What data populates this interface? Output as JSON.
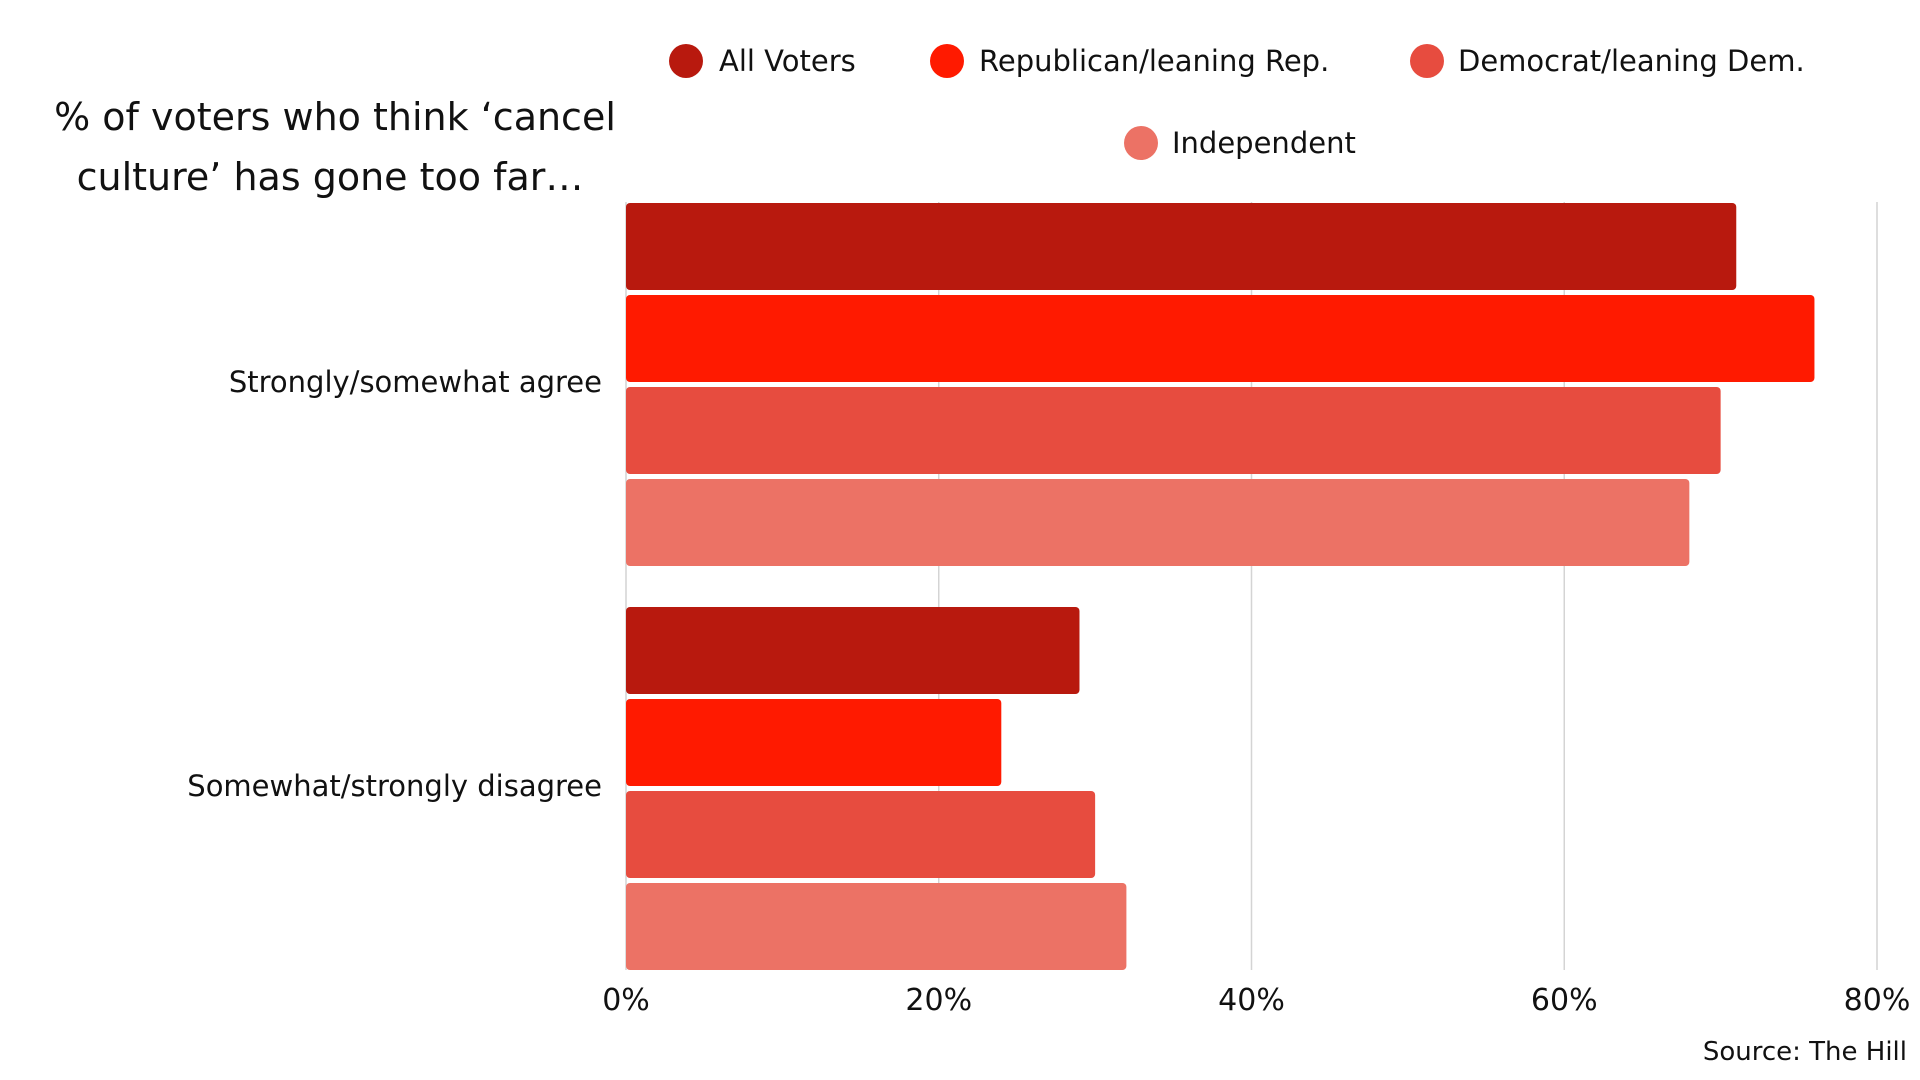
{
  "chart_data": {
    "type": "bar",
    "orientation": "horizontal",
    "title": "% of voters who think ‘cancel culture’ has gone too far…",
    "title_lines": [
      "% of voters who think ‘cancel",
      "culture’ has gone too far…"
    ],
    "categories": [
      "Strongly/somewhat agree",
      "Somewhat/strongly disagree"
    ],
    "series": [
      {
        "name": "All Voters",
        "color": "#b8190e",
        "values": [
          71,
          29
        ]
      },
      {
        "name": "Republican/leaning Rep.",
        "color": "#ff1a00",
        "values": [
          76,
          24
        ]
      },
      {
        "name": "Democrat/leaning Dem.",
        "color": "#e74c3f",
        "values": [
          70,
          30
        ]
      },
      {
        "name": "Independent",
        "color": "#ec7265",
        "values": [
          68,
          32
        ]
      }
    ],
    "xlim": [
      0,
      80
    ],
    "xticks": [
      0,
      20,
      40,
      60,
      80
    ],
    "xtick_labels": [
      "0%",
      "20%",
      "40%",
      "60%",
      "80%"
    ],
    "grid": true,
    "legend_position": "top",
    "source": "Source: The Hill"
  }
}
